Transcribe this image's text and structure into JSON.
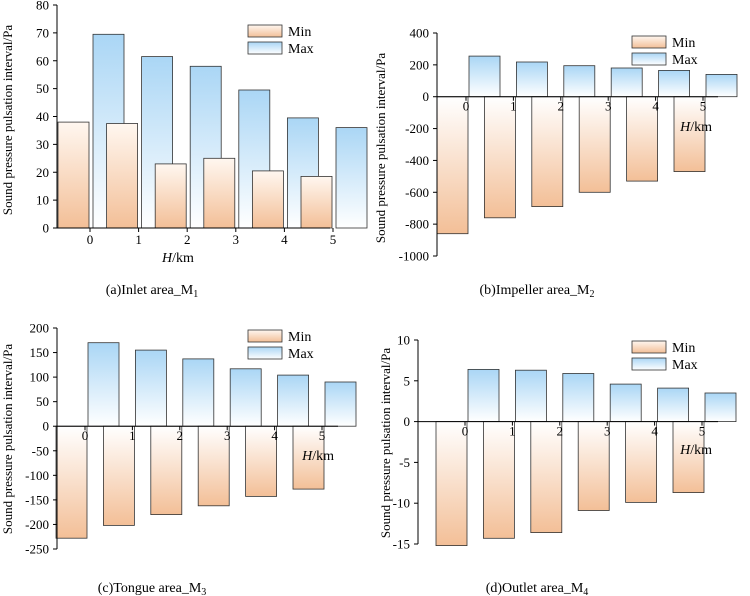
{
  "chart_data": [
    {
      "type": "bar",
      "panel": "(a)",
      "caption": "(a)Inlet area_M",
      "caption_sub": "1",
      "xlabel_italic": "H",
      "xlabel_rest": "/km",
      "ylabel": "Sound pressure pulsation interval/Pa",
      "categories": [
        "0",
        "1",
        "2",
        "3",
        "4",
        "5"
      ],
      "ylim": [
        0,
        80
      ],
      "yticks": [
        "0",
        "10",
        "20",
        "30",
        "40",
        "50",
        "60",
        "70",
        "80"
      ],
      "series": [
        {
          "name": "Min",
          "values": [
            38,
            37.5,
            23,
            25,
            20.5,
            18.5
          ]
        },
        {
          "name": "Max",
          "values": [
            69.5,
            61.5,
            58,
            49.5,
            39.5,
            36
          ]
        }
      ]
    },
    {
      "type": "bar",
      "panel": "(b)",
      "caption": "(b)Impeller area_M",
      "caption_sub": "2",
      "xlabel_italic": "H",
      "xlabel_rest": "/km",
      "ylabel": "Sound pressure pulsation interval/Pa",
      "categories": [
        "0",
        "1",
        "2",
        "3",
        "4",
        "5"
      ],
      "ylim": [
        -1000,
        400
      ],
      "yticks": [
        "-1000",
        "-800",
        "-600",
        "-400",
        "-200",
        "0",
        "200",
        "400"
      ],
      "series": [
        {
          "name": "Min",
          "values": [
            -860,
            -760,
            -690,
            -600,
            -530,
            -470
          ]
        },
        {
          "name": "Max",
          "values": [
            255,
            218,
            195,
            180,
            165,
            140
          ]
        }
      ]
    },
    {
      "type": "bar",
      "panel": "(c)",
      "caption": "(c)Tongue area_M",
      "caption_sub": "3",
      "xlabel_italic": "H",
      "xlabel_rest": "/km",
      "ylabel": "Sound pressure pulsation interval/Pa",
      "categories": [
        "0",
        "1",
        "2",
        "3",
        "4",
        "5"
      ],
      "ylim": [
        -250,
        200
      ],
      "yticks": [
        "-250",
        "-200",
        "-150",
        "-100",
        "-50",
        "0",
        "50",
        "100",
        "150",
        "200"
      ],
      "series": [
        {
          "name": "Min",
          "values": [
            -228,
            -202,
            -180,
            -162,
            -143,
            -128
          ]
        },
        {
          "name": "Max",
          "values": [
            170,
            155,
            137,
            117,
            104,
            90
          ]
        }
      ]
    },
    {
      "type": "bar",
      "panel": "(d)",
      "caption": "(d)Outlet area_M",
      "caption_sub": "4",
      "xlabel_italic": "H",
      "xlabel_rest": "/km",
      "ylabel": "Sound pressure pulsation interval/Pa",
      "categories": [
        "0",
        "1",
        "2",
        "3",
        "4",
        "5"
      ],
      "ylim": [
        -15,
        10
      ],
      "yticks": [
        "-15",
        "-10",
        "-5",
        "0",
        "5",
        "10"
      ],
      "series": [
        {
          "name": "Min",
          "values": [
            -15.2,
            -14.3,
            -13.6,
            -10.9,
            -9.9,
            -8.7
          ]
        },
        {
          "name": "Max",
          "values": [
            6.4,
            6.3,
            5.9,
            4.6,
            4.1,
            3.5
          ]
        }
      ]
    }
  ],
  "colors": {
    "min_top": "#f3bf97",
    "min_bottom": "#fff7f0",
    "max_top": "#aad6f5",
    "max_bottom": "#ffffff",
    "bar_stroke": "#333333",
    "axis": "#000000"
  }
}
